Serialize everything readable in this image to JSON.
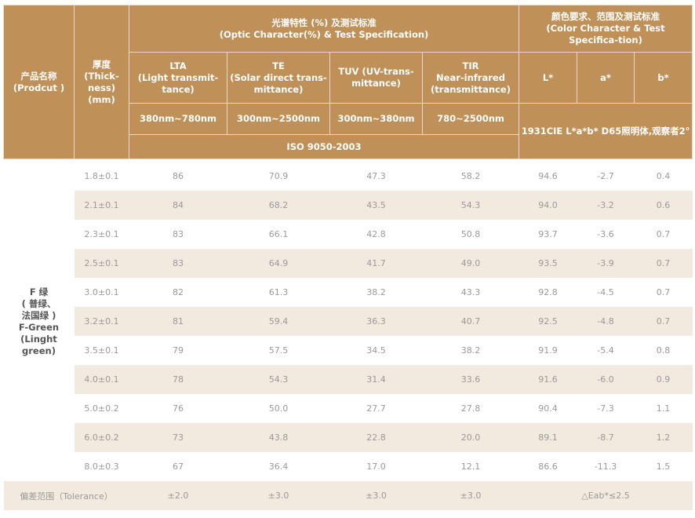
{
  "header": {
    "product": {
      "zh": "产品名称",
      "en": "(Prodcut )"
    },
    "thickness": {
      "zh": "厚度",
      "en1": "(Thick-",
      "en2": "ness)",
      "unit": "(mm)"
    },
    "optic": {
      "zh": "光谱特性 (%) 及测试标准",
      "en": "(Optic Character(%) & Test Specification)"
    },
    "color": {
      "zh": "颜色要求、范围及测试标准",
      "en": "(Color Character & Test Specifica-tion)"
    },
    "columns": [
      {
        "name": "LTA",
        "desc": "(Light transmit-tance)",
        "range": "380nm~780nm"
      },
      {
        "name": "TE",
        "desc": "(Solar direct trans-mittance)",
        "range": "300nm~2500nm"
      },
      {
        "name": "TUV",
        "desc": "(UV-trans-mittance)",
        "range": "300nm~380nm"
      },
      {
        "name": "TIR",
        "desc": "Near-infrared (transmittance)",
        "range": "780~2500nm"
      }
    ],
    "color_columns": [
      "L*",
      "a*",
      "b*"
    ],
    "optic_standard": "ISO 9050-2003",
    "color_standard": "1931CIE L*a*b*  D65照明体,观察者2°"
  },
  "product": {
    "line1": "F 绿",
    "line2": "( 普绿、",
    "line3": "法国绿 )",
    "line4": "F-Green",
    "line5": "(Linght",
    "line6": "green)"
  },
  "rows": [
    [
      "1.8±0.1",
      "86",
      "70.9",
      "47.3",
      "58.2",
      "94.6",
      "-2.7",
      "0.4"
    ],
    [
      "2.1±0.1",
      "84",
      "68.2",
      "43.5",
      "54.3",
      "94.0",
      "-3.2",
      "0.6"
    ],
    [
      "2.3±0.1",
      "83",
      "66.1",
      "42.8",
      "50.8",
      "93.7",
      "-3.6",
      "0.7"
    ],
    [
      "2.5±0.1",
      "83",
      "64.9",
      "41.7",
      "49.0",
      "93.5",
      "-3.9",
      "0.7"
    ],
    [
      "3.0±0.1",
      "82",
      "61.3",
      "38.2",
      "43.3",
      "92.8",
      "-4.5",
      "0.7"
    ],
    [
      "3.2±0.1",
      "81",
      "59.4",
      "36.3",
      "40.7",
      "92.5",
      "-4.8",
      "0.7"
    ],
    [
      "3.5±0.1",
      "79",
      "57.5",
      "34.5",
      "38.2",
      "91.9",
      "-5.4",
      "0.8"
    ],
    [
      "4.0±0.1",
      "78",
      "54.3",
      "31.4",
      "33.6",
      "91.6",
      "-6.0",
      "0.9"
    ],
    [
      "5.0±0.2",
      "76",
      "50.0",
      "27.7",
      "27.8",
      "90.4",
      "-7.3",
      "1.1"
    ],
    [
      "6.0±0.2",
      "73",
      "43.8",
      "22.8",
      "20.0",
      "89.1",
      "-8.7",
      "1.2"
    ],
    [
      "8.0±0.3",
      "67",
      "36.4",
      "17.0",
      "12.1",
      "86.6",
      "-11.3",
      "1.5"
    ]
  ],
  "tolerance": {
    "label": "偏差范围（Tolerance）",
    "values": [
      "±2.0",
      "±3.0",
      "±3.0",
      "±3.0"
    ],
    "color": "△Eab*≤2.5"
  },
  "colors": {
    "header": "#bf9158",
    "shade": "#f2e9df",
    "text": "#9a9a9a"
  }
}
